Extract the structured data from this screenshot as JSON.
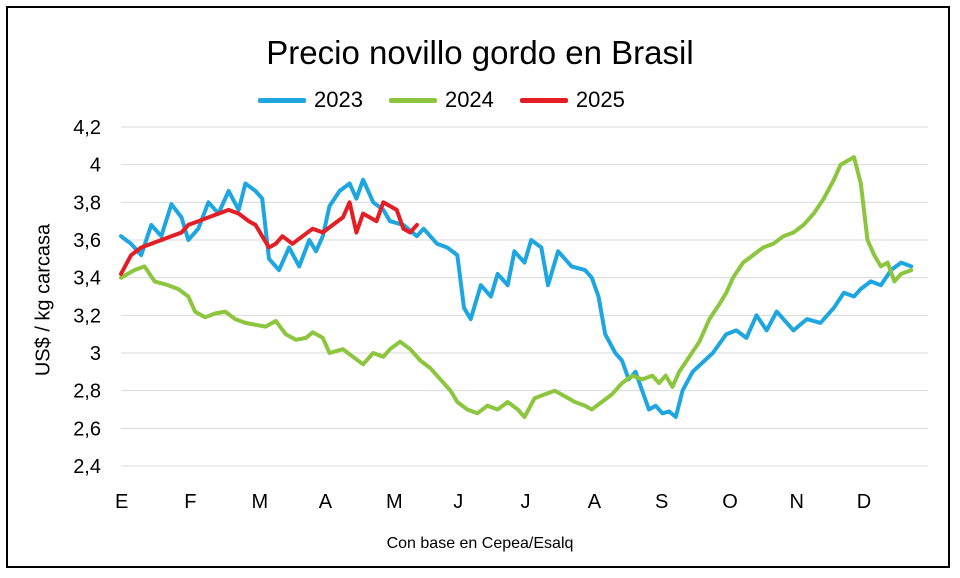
{
  "chart_data": {
    "type": "line",
    "title": "Precio novillo gordo en Brasil",
    "ylabel": "US$ / kg carcasa",
    "xlabel": "",
    "caption": "Con base en Cepea/Esalq",
    "ylim": [
      2.4,
      4.2
    ],
    "y_ticks": [
      "2,4",
      "2,6",
      "2,8",
      "3",
      "3,2",
      "3,4",
      "3,6",
      "3,8",
      "4",
      "4,2"
    ],
    "y_tick_values": [
      2.4,
      2.6,
      2.8,
      3.0,
      3.2,
      3.4,
      3.6,
      3.8,
      4.0,
      4.2
    ],
    "x_ticks": [
      "E",
      "F",
      "M",
      "A",
      "M",
      "J",
      "J",
      "A",
      "S",
      "O",
      "N",
      "D"
    ],
    "grid": true,
    "legend_position": "top",
    "series": [
      {
        "name": "2023",
        "color": "#1ea6e0",
        "points": [
          [
            0.0,
            3.62
          ],
          [
            0.15,
            3.58
          ],
          [
            0.3,
            3.52
          ],
          [
            0.45,
            3.68
          ],
          [
            0.6,
            3.62
          ],
          [
            0.75,
            3.79
          ],
          [
            0.9,
            3.72
          ],
          [
            1.0,
            3.6
          ],
          [
            1.15,
            3.66
          ],
          [
            1.3,
            3.8
          ],
          [
            1.45,
            3.74
          ],
          [
            1.6,
            3.86
          ],
          [
            1.75,
            3.76
          ],
          [
            1.85,
            3.9
          ],
          [
            2.0,
            3.86
          ],
          [
            2.1,
            3.82
          ],
          [
            2.2,
            3.5
          ],
          [
            2.35,
            3.44
          ],
          [
            2.5,
            3.56
          ],
          [
            2.65,
            3.46
          ],
          [
            2.8,
            3.6
          ],
          [
            2.9,
            3.54
          ],
          [
            3.0,
            3.62
          ],
          [
            3.1,
            3.78
          ],
          [
            3.25,
            3.86
          ],
          [
            3.4,
            3.9
          ],
          [
            3.5,
            3.82
          ],
          [
            3.6,
            3.92
          ],
          [
            3.75,
            3.8
          ],
          [
            3.9,
            3.76
          ],
          [
            4.0,
            3.7
          ],
          [
            4.2,
            3.68
          ],
          [
            4.4,
            3.62
          ],
          [
            4.5,
            3.66
          ],
          [
            4.7,
            3.58
          ],
          [
            4.85,
            3.56
          ],
          [
            5.0,
            3.52
          ],
          [
            5.1,
            3.24
          ],
          [
            5.2,
            3.18
          ],
          [
            5.35,
            3.36
          ],
          [
            5.5,
            3.3
          ],
          [
            5.6,
            3.42
          ],
          [
            5.75,
            3.36
          ],
          [
            5.85,
            3.54
          ],
          [
            6.0,
            3.48
          ],
          [
            6.1,
            3.6
          ],
          [
            6.25,
            3.56
          ],
          [
            6.35,
            3.36
          ],
          [
            6.5,
            3.54
          ],
          [
            6.7,
            3.46
          ],
          [
            6.9,
            3.44
          ],
          [
            7.0,
            3.4
          ],
          [
            7.1,
            3.3
          ],
          [
            7.2,
            3.1
          ],
          [
            7.35,
            3.0
          ],
          [
            7.45,
            2.96
          ],
          [
            7.55,
            2.86
          ],
          [
            7.65,
            2.9
          ],
          [
            7.75,
            2.8
          ],
          [
            7.85,
            2.7
          ],
          [
            7.95,
            2.72
          ],
          [
            8.05,
            2.68
          ],
          [
            8.15,
            2.69
          ],
          [
            8.25,
            2.66
          ],
          [
            8.35,
            2.8
          ],
          [
            8.5,
            2.9
          ],
          [
            8.65,
            2.95
          ],
          [
            8.8,
            3.0
          ],
          [
            9.0,
            3.1
          ],
          [
            9.15,
            3.12
          ],
          [
            9.3,
            3.08
          ],
          [
            9.45,
            3.2
          ],
          [
            9.6,
            3.12
          ],
          [
            9.75,
            3.22
          ],
          [
            9.9,
            3.16
          ],
          [
            10.0,
            3.12
          ],
          [
            10.2,
            3.18
          ],
          [
            10.4,
            3.16
          ],
          [
            10.6,
            3.24
          ],
          [
            10.75,
            3.32
          ],
          [
            10.9,
            3.3
          ],
          [
            11.0,
            3.34
          ],
          [
            11.15,
            3.38
          ],
          [
            11.3,
            3.36
          ],
          [
            11.45,
            3.44
          ],
          [
            11.6,
            3.48
          ],
          [
            11.75,
            3.46
          ]
        ]
      },
      {
        "name": "2024",
        "color": "#8cc63f",
        "points": [
          [
            0.0,
            3.4
          ],
          [
            0.2,
            3.44
          ],
          [
            0.35,
            3.46
          ],
          [
            0.5,
            3.38
          ],
          [
            0.7,
            3.36
          ],
          [
            0.85,
            3.34
          ],
          [
            1.0,
            3.3
          ],
          [
            1.1,
            3.22
          ],
          [
            1.25,
            3.19
          ],
          [
            1.4,
            3.21
          ],
          [
            1.55,
            3.22
          ],
          [
            1.7,
            3.18
          ],
          [
            1.85,
            3.16
          ],
          [
            2.0,
            3.15
          ],
          [
            2.15,
            3.14
          ],
          [
            2.3,
            3.17
          ],
          [
            2.45,
            3.1
          ],
          [
            2.6,
            3.07
          ],
          [
            2.75,
            3.08
          ],
          [
            2.85,
            3.11
          ],
          [
            3.0,
            3.08
          ],
          [
            3.1,
            3.0
          ],
          [
            3.3,
            3.02
          ],
          [
            3.45,
            2.98
          ],
          [
            3.6,
            2.94
          ],
          [
            3.75,
            3.0
          ],
          [
            3.9,
            2.98
          ],
          [
            4.0,
            3.02
          ],
          [
            4.15,
            3.06
          ],
          [
            4.3,
            3.02
          ],
          [
            4.45,
            2.96
          ],
          [
            4.6,
            2.92
          ],
          [
            4.75,
            2.86
          ],
          [
            4.9,
            2.8
          ],
          [
            5.0,
            2.74
          ],
          [
            5.15,
            2.7
          ],
          [
            5.3,
            2.68
          ],
          [
            5.45,
            2.72
          ],
          [
            5.6,
            2.7
          ],
          [
            5.75,
            2.74
          ],
          [
            5.9,
            2.7
          ],
          [
            6.0,
            2.66
          ],
          [
            6.15,
            2.76
          ],
          [
            6.3,
            2.78
          ],
          [
            6.45,
            2.8
          ],
          [
            6.6,
            2.77
          ],
          [
            6.75,
            2.74
          ],
          [
            6.9,
            2.72
          ],
          [
            7.0,
            2.7
          ],
          [
            7.15,
            2.74
          ],
          [
            7.3,
            2.78
          ],
          [
            7.45,
            2.84
          ],
          [
            7.6,
            2.88
          ],
          [
            7.75,
            2.86
          ],
          [
            7.9,
            2.88
          ],
          [
            8.0,
            2.84
          ],
          [
            8.1,
            2.88
          ],
          [
            8.2,
            2.82
          ],
          [
            8.3,
            2.9
          ],
          [
            8.45,
            2.98
          ],
          [
            8.6,
            3.06
          ],
          [
            8.75,
            3.18
          ],
          [
            8.9,
            3.26
          ],
          [
            9.0,
            3.32
          ],
          [
            9.1,
            3.4
          ],
          [
            9.25,
            3.48
          ],
          [
            9.4,
            3.52
          ],
          [
            9.55,
            3.56
          ],
          [
            9.7,
            3.58
          ],
          [
            9.85,
            3.62
          ],
          [
            10.0,
            3.64
          ],
          [
            10.15,
            3.68
          ],
          [
            10.3,
            3.74
          ],
          [
            10.45,
            3.82
          ],
          [
            10.6,
            3.92
          ],
          [
            10.7,
            4.0
          ],
          [
            10.8,
            4.02
          ],
          [
            10.9,
            4.04
          ],
          [
            11.0,
            3.9
          ],
          [
            11.1,
            3.6
          ],
          [
            11.2,
            3.52
          ],
          [
            11.3,
            3.46
          ],
          [
            11.4,
            3.48
          ],
          [
            11.5,
            3.38
          ],
          [
            11.6,
            3.42
          ],
          [
            11.75,
            3.44
          ]
        ]
      },
      {
        "name": "2025",
        "color": "#e31e24",
        "points": [
          [
            0.0,
            3.42
          ],
          [
            0.15,
            3.52
          ],
          [
            0.3,
            3.56
          ],
          [
            0.45,
            3.58
          ],
          [
            0.6,
            3.6
          ],
          [
            0.75,
            3.62
          ],
          [
            0.9,
            3.64
          ],
          [
            1.0,
            3.68
          ],
          [
            1.15,
            3.7
          ],
          [
            1.3,
            3.72
          ],
          [
            1.45,
            3.74
          ],
          [
            1.6,
            3.76
          ],
          [
            1.75,
            3.74
          ],
          [
            1.9,
            3.7
          ],
          [
            2.0,
            3.68
          ],
          [
            2.1,
            3.62
          ],
          [
            2.2,
            3.56
          ],
          [
            2.3,
            3.58
          ],
          [
            2.4,
            3.62
          ],
          [
            2.55,
            3.58
          ],
          [
            2.7,
            3.62
          ],
          [
            2.85,
            3.66
          ],
          [
            3.0,
            3.64
          ],
          [
            3.15,
            3.68
          ],
          [
            3.3,
            3.72
          ],
          [
            3.4,
            3.8
          ],
          [
            3.5,
            3.64
          ],
          [
            3.6,
            3.74
          ],
          [
            3.7,
            3.72
          ],
          [
            3.8,
            3.7
          ],
          [
            3.9,
            3.8
          ],
          [
            4.0,
            3.78
          ],
          [
            4.1,
            3.76
          ],
          [
            4.2,
            3.66
          ],
          [
            4.3,
            3.64
          ],
          [
            4.4,
            3.68
          ]
        ]
      }
    ]
  }
}
